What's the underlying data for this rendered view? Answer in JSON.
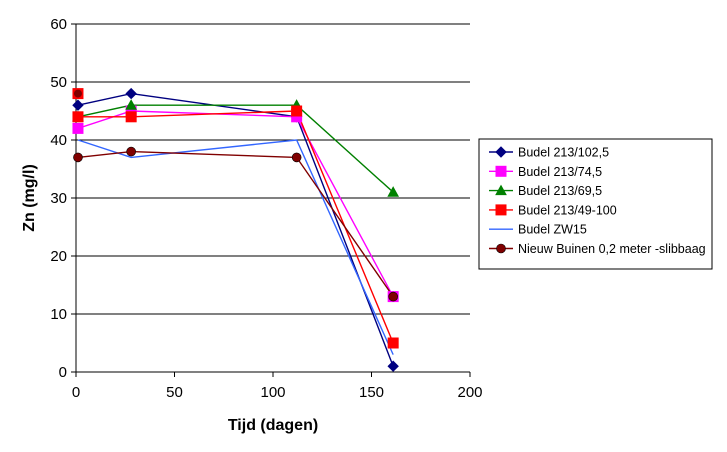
{
  "chart_data": {
    "type": "line",
    "title": "",
    "xlabel": "Tijd (dagen)",
    "ylabel": "Zn (mg/l)",
    "xlim": [
      0,
      200
    ],
    "ylim": [
      0,
      60
    ],
    "xticks": [
      "0",
      "50",
      "100",
      "150",
      "200"
    ],
    "yticks": [
      "0",
      "10",
      "20",
      "30",
      "40",
      "50",
      "60"
    ],
    "grid": "horizontal",
    "legend_position": "right",
    "series": [
      {
        "name": "Budel 213/102,5",
        "color": "#000080",
        "marker": "diamond",
        "x": [
          1,
          28,
          112,
          161
        ],
        "values": [
          46,
          48,
          44,
          1
        ]
      },
      {
        "name": "Budel 213/74,5",
        "color": "#FF00FF",
        "marker": "square",
        "x": [
          1,
          28,
          112,
          161
        ],
        "values": [
          42,
          45,
          44,
          13
        ]
      },
      {
        "name": "Budel 213/69,5",
        "color": "#008000",
        "marker": "triangle",
        "x": [
          1,
          28,
          112,
          161
        ],
        "values": [
          44,
          46,
          46,
          31
        ]
      },
      {
        "name": "Budel 213/49-100",
        "color": "#FF0000",
        "marker": "square",
        "x": [
          1,
          28,
          112,
          161
        ],
        "values": [
          44,
          44,
          45,
          5
        ]
      },
      {
        "name": "Budel ZW15",
        "color": "#3366FF",
        "marker": "none",
        "x": [
          1,
          28,
          112,
          161
        ],
        "values": [
          40,
          37,
          40,
          3
        ]
      },
      {
        "name": "Nieuw Buinen 0,2 meter -slibbaag",
        "color": "#800000",
        "marker": "circle",
        "x": [
          1,
          28,
          112,
          161
        ],
        "values": [
          37,
          38,
          37,
          13
        ]
      }
    ]
  },
  "extra_points": [
    {
      "series": "Budel 213/49-100",
      "x": 1,
      "y": 48
    }
  ]
}
